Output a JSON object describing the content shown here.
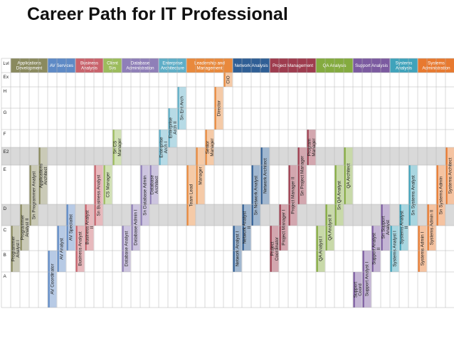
{
  "title": "Career Path for IT Professional",
  "corner_label": "Lvl",
  "levels": [
    "Ex",
    "H",
    "G",
    "F",
    "E2",
    "E",
    "D",
    "C",
    "B",
    "A"
  ],
  "shaded_levels": [
    "E2",
    "D"
  ],
  "categories": [
    {
      "label": "Applications Development",
      "color": "#8a8a5e"
    },
    {
      "label": "AV Services",
      "color": "#5e8ac6"
    },
    {
      "label": "Business Analysis",
      "color": "#c9636c"
    },
    {
      "label": "Client Svs",
      "color": "#9cbc5c"
    },
    {
      "label": "Database Administration",
      "color": "#8f7fb8"
    },
    {
      "label": "Enterprise Architecture",
      "color": "#5faec7"
    },
    {
      "label": "Leadership and Management",
      "color": "#e9893c"
    },
    {
      "label": "Network Analysis",
      "color": "#2f5e95"
    },
    {
      "label": "Project Management",
      "color": "#9e3c4e"
    },
    {
      "label": "QA Analysis",
      "color": "#84ab3f"
    },
    {
      "label": "Support Analysis",
      "color": "#7b5aa0"
    },
    {
      "label": "Systems Analysis",
      "color": "#3fa3bb"
    },
    {
      "label": "Systems Administration",
      "color": "#e8792f"
    }
  ],
  "roles": [
    {
      "label": "Programmer Analyst I",
      "category": 0,
      "top": "C",
      "bottom": "B"
    },
    {
      "label": "Programmer Analyst II",
      "category": 0,
      "top": "D",
      "bottom": "C"
    },
    {
      "label": "Sn Programmer Analyst",
      "category": 0,
      "top": "E",
      "bottom": "D"
    },
    {
      "label": "Applications Architect",
      "category": 0,
      "top": "E2",
      "bottom": "E"
    },
    {
      "label": "AV Coordinator",
      "category": 1,
      "top": "B",
      "bottom": "A"
    },
    {
      "label": "AV Analyst",
      "category": 1,
      "top": "C",
      "bottom": "B"
    },
    {
      "label": "AV Specialist",
      "category": 1,
      "top": "D",
      "bottom": "C"
    },
    {
      "label": "Business Analyst",
      "category": 2,
      "top": "C",
      "bottom": "B"
    },
    {
      "label": "Business Analyst II",
      "category": 2,
      "top": "D",
      "bottom": "C"
    },
    {
      "label": "Sn Business Analyst",
      "category": 2,
      "top": "E",
      "bottom": "D"
    },
    {
      "label": "CS Manager",
      "category": 3,
      "top": "E",
      "bottom": "E"
    },
    {
      "label": "Sn CS Manager",
      "category": 3,
      "top": "F",
      "bottom": "E2"
    },
    {
      "label": "Database Analyst",
      "category": 4,
      "top": "C",
      "bottom": "B"
    },
    {
      "label": "Database Admin I",
      "category": 4,
      "top": "D",
      "bottom": "C"
    },
    {
      "label": "Sn Database Admin",
      "category": 4,
      "top": "E",
      "bottom": "D"
    },
    {
      "label": "Database Architect",
      "category": 4,
      "top": "E",
      "bottom": "E"
    },
    {
      "label": "Enterprise Arch I",
      "category": 5,
      "top": "F",
      "bottom": "E2"
    },
    {
      "label": "Enterprise Arch II",
      "category": 5,
      "top": "G",
      "bottom": "F"
    },
    {
      "label": "Sn Ent Arch",
      "category": 5,
      "top": "H",
      "bottom": "G"
    },
    {
      "label": "Team Lead",
      "category": 6,
      "top": "E",
      "bottom": "D"
    },
    {
      "label": "Manager",
      "category": 6,
      "top": "E2",
      "bottom": "E"
    },
    {
      "label": "Senior Manager",
      "category": 6,
      "top": "F",
      "bottom": "E2"
    },
    {
      "label": "Director",
      "category": 6,
      "top": "H",
      "bottom": "G"
    },
    {
      "label": "CIO",
      "category": 6,
      "top": "Ex",
      "bottom": "Ex"
    },
    {
      "label": "Network Analyst I",
      "category": 7,
      "top": "C",
      "bottom": "B"
    },
    {
      "label": "Network Analyst II",
      "category": 7,
      "top": "D",
      "bottom": "C"
    },
    {
      "label": "Sn Network Analyst",
      "category": 7,
      "top": "E",
      "bottom": "D"
    },
    {
      "label": "Network Architect",
      "category": 7,
      "top": "E2",
      "bottom": "E"
    },
    {
      "label": "Project Coordinator",
      "category": 8,
      "top": "C",
      "bottom": "B"
    },
    {
      "label": "Project Manager I",
      "category": 8,
      "top": "D",
      "bottom": "C"
    },
    {
      "label": "Project Manager II",
      "category": 8,
      "top": "E",
      "bottom": "D"
    },
    {
      "label": "Sn Project Manager",
      "category": 8,
      "top": "E2",
      "bottom": "E"
    },
    {
      "label": "Program Manager",
      "category": 8,
      "top": "F",
      "bottom": "E2"
    },
    {
      "label": "QA Analyst I",
      "category": 9,
      "top": "C",
      "bottom": "B"
    },
    {
      "label": "QA Analyst II",
      "category": 9,
      "top": "D",
      "bottom": "C"
    },
    {
      "label": "Sn QA Analyst",
      "category": 9,
      "top": "E",
      "bottom": "D"
    },
    {
      "label": "QA Architect",
      "category": 9,
      "top": "E2",
      "bottom": "E"
    },
    {
      "label": "Support Coord",
      "category": 10,
      "top": "A",
      "bottom": "A"
    },
    {
      "label": "Support Analyst I",
      "category": 10,
      "top": "B",
      "bottom": "A"
    },
    {
      "label": "Support Analyst II",
      "category": 10,
      "top": "C",
      "bottom": "B"
    },
    {
      "label": "Sn Support Analyst",
      "category": 10,
      "top": "D",
      "bottom": "C"
    },
    {
      "label": "Systems Analyst I",
      "category": 11,
      "top": "C",
      "bottom": "B"
    },
    {
      "label": "Systems Analyst II",
      "category": 11,
      "top": "D",
      "bottom": "C"
    },
    {
      "label": "Sn Systems Analyst",
      "category": 11,
      "top": "E",
      "bottom": "D"
    },
    {
      "label": "Systems Admin I",
      "category": 12,
      "top": "C",
      "bottom": "B"
    },
    {
      "label": "Systems Admin II",
      "category": 12,
      "top": "D",
      "bottom": "C"
    },
    {
      "label": "Sn Systems Admin",
      "category": 12,
      "top": "E",
      "bottom": "D"
    },
    {
      "label": "Systems Architect",
      "category": 12,
      "top": "E2",
      "bottom": "E"
    }
  ]
}
